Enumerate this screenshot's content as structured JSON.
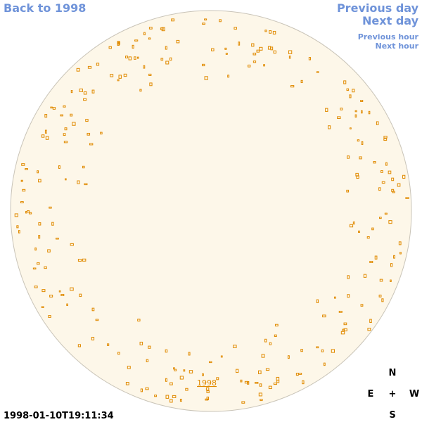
{
  "nav": {
    "back": "Back to 1998",
    "previous_day": "Previous day",
    "next_day": "Next day",
    "previous_hour": "Previous hour",
    "next_hour": "Next hour"
  },
  "timestamp": "1998-01-10T19:11:34",
  "year_link": "1998",
  "compass": {
    "north": "N",
    "east": "E",
    "center": "+",
    "west": "W",
    "south": "S"
  }
}
